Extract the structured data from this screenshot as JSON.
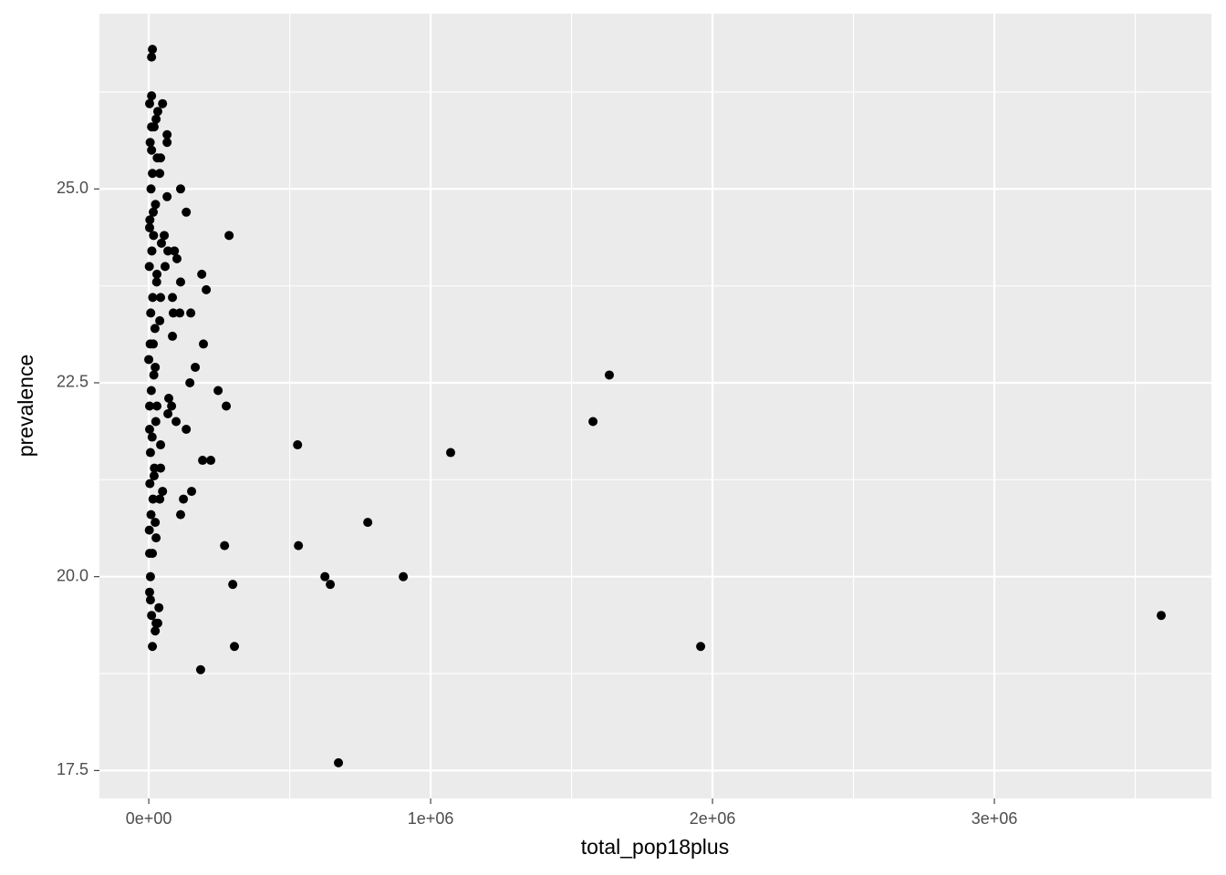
{
  "chart_data": {
    "type": "scatter",
    "x_label": "total_pop18plus",
    "y_label": "prevalence",
    "color": "#000000",
    "grid": true,
    "xlim": [
      -175000,
      3770000
    ],
    "ylim": [
      17.14,
      27.26
    ],
    "xticks": [
      {
        "value": 0,
        "label": "0e+00"
      },
      {
        "value": 1000000,
        "label": "1e+06"
      },
      {
        "value": 2000000,
        "label": "2e+06"
      },
      {
        "value": 3000000,
        "label": "3e+06"
      }
    ],
    "yticks": [
      {
        "value": 17.5,
        "label": "17.5"
      },
      {
        "value": 20,
        "label": "20.0"
      },
      {
        "value": 22.5,
        "label": "22.5"
      },
      {
        "value": 25,
        "label": "25.0"
      }
    ],
    "x_minor_breaks": [
      500000,
      1500000,
      2500000,
      3500000
    ],
    "y_minor_breaks": [
      18.75,
      21.25,
      23.75,
      26.25
    ],
    "x": [
      3592000,
      1958000,
      1634000,
      1576000,
      1071000,
      903000,
      777000,
      673000,
      644000,
      625000,
      531000,
      528000,
      304000,
      298000,
      285000,
      275000,
      269000,
      246000,
      220000,
      204000,
      194000,
      191000,
      188000,
      184000,
      165000,
      152000,
      149000,
      146000,
      133000,
      133000,
      123000,
      113000,
      113000,
      113000,
      110000,
      97000,
      100000,
      91000,
      87000,
      84000,
      84000,
      81000,
      71000,
      68000,
      65000,
      65000,
      65000,
      68000,
      58000,
      55000,
      49000,
      49000,
      45000,
      42000,
      42000,
      42000,
      42000,
      39000,
      39000,
      39000,
      36000,
      32000,
      32000,
      29000,
      29000,
      26000,
      26000,
      23000,
      26000,
      23000,
      23000,
      19000,
      16000,
      16000,
      13000,
      13000,
      10000,
      10000,
      10000,
      6000,
      3000,
      3000,
      3000,
      0,
      3000,
      10000,
      6000,
      13000,
      2000,
      8000,
      15000,
      4000,
      20000,
      6000,
      12000,
      25000,
      3000,
      9000,
      18000,
      5000,
      22000,
      7000,
      14000,
      28000,
      2000,
      11000,
      17000,
      4000,
      24000,
      8000,
      13000,
      30000,
      5000,
      10000,
      19000,
      3000
    ],
    "values": [
      19.5,
      19.1,
      22.6,
      22.0,
      21.6,
      20.0,
      20.7,
      17.6,
      19.9,
      20.0,
      20.4,
      21.7,
      19.1,
      19.9,
      24.4,
      22.2,
      20.4,
      22.4,
      21.5,
      23.7,
      23.0,
      21.5,
      23.9,
      18.8,
      22.7,
      21.1,
      23.4,
      22.5,
      24.7,
      21.9,
      21.0,
      20.8,
      23.8,
      25.0,
      23.4,
      22.0,
      24.1,
      24.2,
      23.4,
      23.1,
      23.6,
      22.2,
      22.3,
      22.1,
      25.7,
      24.9,
      25.6,
      24.2,
      24.0,
      24.4,
      26.1,
      21.1,
      24.3,
      25.4,
      23.6,
      21.4,
      21.7,
      21.0,
      23.3,
      25.2,
      19.6,
      19.4,
      26.0,
      23.9,
      22.2,
      20.5,
      19.4,
      19.3,
      25.9,
      22.7,
      20.7,
      25.8,
      23.0,
      24.7,
      19.1,
      26.8,
      26.7,
      26.2,
      25.5,
      20.0,
      19.8,
      20.3,
      26.1,
      22.8,
      21.9,
      19.5,
      19.7,
      20.3,
      20.6,
      20.8,
      21.0,
      21.2,
      21.4,
      21.6,
      21.8,
      22.0,
      22.2,
      22.4,
      22.6,
      23.0,
      23.2,
      23.4,
      23.6,
      23.8,
      24.0,
      24.2,
      24.4,
      24.6,
      24.8,
      25.0,
      25.2,
      25.4,
      25.6,
      25.8,
      21.3,
      24.5
    ]
  }
}
